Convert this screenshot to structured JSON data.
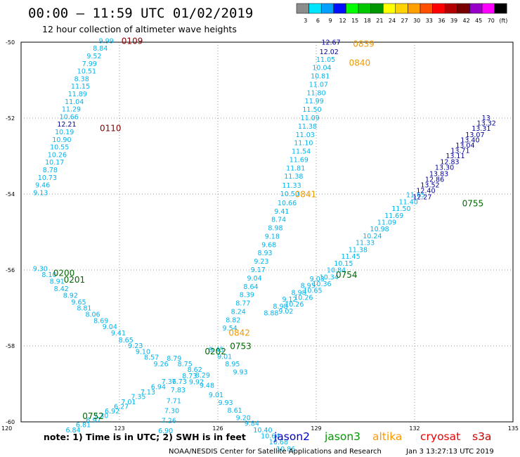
{
  "header": {
    "title": "00:00 – 11:59 UTC 01/02/2019",
    "subtitle": "12 hour collection of altimeter wave heights"
  },
  "colorbar": {
    "labels": [
      "3",
      "6",
      "9",
      "12",
      "15",
      "18",
      "21",
      "24",
      "27",
      "30",
      "33",
      "36",
      "39",
      "42",
      "45",
      "70",
      "(ft)"
    ],
    "colors": [
      "#8c8c8c",
      "#00e5ff",
      "#00a0ff",
      "#0010ff",
      "#00ff00",
      "#00c800",
      "#009600",
      "#ffff00",
      "#ffd200",
      "#ffa000",
      "#ff5000",
      "#ff0000",
      "#b40000",
      "#780000",
      "#9600c8",
      "#ff00ff",
      "#000000"
    ]
  },
  "footer": {
    "note": "note:  1) Time is in UTC;  2) SWH is in feet",
    "credit": "NOAA/NESDIS Center for Satellite Applications and Research",
    "timestamp": "Jan  3 13:27:13 UTC 2019"
  },
  "legend": [
    {
      "name": "jason2",
      "color": "#0000cc"
    },
    {
      "name": "jason3",
      "color": "#009900"
    },
    {
      "name": "altika",
      "color": "#ff9900"
    },
    {
      "name": "cryosat",
      "color": "#ee0000"
    },
    {
      "name": "s3a",
      "color": "#cc0000"
    }
  ],
  "chart_data": {
    "type": "scatter",
    "xlim": [
      120,
      135
    ],
    "ylim": [
      -60,
      -50
    ],
    "x_ticks": [
      "120",
      "123",
      "126",
      "129",
      "132",
      "135"
    ],
    "x_tick_values": [
      120,
      123,
      126,
      129,
      132,
      135
    ],
    "y_ticks": [
      "-50",
      "-52",
      "-54",
      "-56",
      "-58",
      "-60"
    ],
    "y_tick_values": [
      -50,
      -52,
      -54,
      -56,
      -58,
      -60
    ],
    "grid": true,
    "color_scale": {
      "bins": [
        3,
        6,
        9,
        12,
        15,
        18
      ],
      "colors": [
        "#8c8c8c",
        "#00b4ec",
        "#00b4ec",
        "#000099",
        "#66ee66",
        "#66ee66"
      ]
    },
    "time_labels": [
      {
        "text": "0109",
        "lon": 123.06,
        "lat": -49.97,
        "color": "#880000"
      },
      {
        "text": "0110",
        "lon": 122.4,
        "lat": -52.27,
        "color": "#880000"
      },
      {
        "text": "0200",
        "lon": 120.98,
        "lat": -56.08,
        "color": "#006600"
      },
      {
        "text": "0201",
        "lon": 121.3,
        "lat": -56.26,
        "color": "#006600"
      },
      {
        "text": "0202",
        "lon": 125.6,
        "lat": -58.15,
        "color": "#006600"
      },
      {
        "text": "0752",
        "lon": 121.87,
        "lat": -59.85,
        "color": "#006600"
      },
      {
        "text": "0753",
        "lon": 126.37,
        "lat": -58.01,
        "color": "#006600"
      },
      {
        "text": "0754",
        "lon": 129.6,
        "lat": -56.13,
        "color": "#006600"
      },
      {
        "text": "0755",
        "lon": 133.45,
        "lat": -54.25,
        "color": "#006600"
      },
      {
        "text": "0839",
        "lon": 130.12,
        "lat": -50.05,
        "color": "#ee9900"
      },
      {
        "text": "0840",
        "lon": 130.0,
        "lat": -50.55,
        "color": "#ee9900"
      },
      {
        "text": "0841",
        "lon": 128.35,
        "lat": -54.01,
        "color": "#ee9900"
      },
      {
        "text": "0842",
        "lon": 126.33,
        "lat": -57.66,
        "color": "#ee9900"
      }
    ],
    "series": [
      {
        "name": "jason2",
        "points": [
          {
            "v": "9.99",
            "x": 122.37,
            "y": -49.97
          },
          {
            "v": "8.84",
            "x": 122.19,
            "y": -50.17
          },
          {
            "v": "9.52",
            "x": 122.0,
            "y": -50.37
          },
          {
            "v": "7.99",
            "x": 121.86,
            "y": -50.57
          },
          {
            "v": "10.51",
            "x": 121.71,
            "y": -50.77
          },
          {
            "v": "8.38",
            "x": 121.62,
            "y": -50.97
          },
          {
            "v": "11.15",
            "x": 121.52,
            "y": -51.17
          },
          {
            "v": "11.89",
            "x": 121.43,
            "y": -51.37
          },
          {
            "v": "11.04",
            "x": 121.33,
            "y": -51.57
          },
          {
            "v": "11.29",
            "x": 121.24,
            "y": -51.77
          },
          {
            "v": "10.66",
            "x": 121.17,
            "y": -51.97
          },
          {
            "v": "12.21",
            "x": 121.1,
            "y": -52.17
          },
          {
            "v": "10.19",
            "x": 121.03,
            "y": -52.37
          },
          {
            "v": "10.90",
            "x": 120.95,
            "y": -52.57
          },
          {
            "v": "10.55",
            "x": 120.88,
            "y": -52.77
          },
          {
            "v": "10.26",
            "x": 120.81,
            "y": -52.97
          },
          {
            "v": "10.17",
            "x": 120.73,
            "y": -53.17
          },
          {
            "v": "8.78",
            "x": 120.66,
            "y": -53.37
          },
          {
            "v": "10.73",
            "x": 120.51,
            "y": -53.57
          },
          {
            "v": "9.46",
            "x": 120.43,
            "y": -53.77
          },
          {
            "v": "9.13",
            "x": 120.37,
            "y": -53.97
          },
          {
            "v": "9.30",
            "x": 120.36,
            "y": -55.97
          },
          {
            "v": "8.10",
            "x": 120.63,
            "y": -56.13
          },
          {
            "v": "8.91",
            "x": 120.87,
            "y": -56.31
          },
          {
            "v": "8.42",
            "x": 121.0,
            "y": -56.5
          },
          {
            "v": "8.92",
            "x": 121.28,
            "y": -56.68
          },
          {
            "v": "9.65",
            "x": 121.53,
            "y": -56.85
          },
          {
            "v": "8.81",
            "x": 121.7,
            "y": -57.01
          },
          {
            "v": "8.06",
            "x": 121.96,
            "y": -57.18
          },
          {
            "v": "8.69",
            "x": 122.21,
            "y": -57.34
          },
          {
            "v": "9.04",
            "x": 122.48,
            "y": -57.5
          },
          {
            "v": "9.41",
            "x": 122.74,
            "y": -57.67
          },
          {
            "v": "8.65",
            "x": 122.97,
            "y": -57.85
          },
          {
            "v": "9.23",
            "x": 123.26,
            "y": -58.0
          },
          {
            "v": "9.10",
            "x": 123.49,
            "y": -58.16
          },
          {
            "v": "8.57",
            "x": 123.75,
            "y": -58.31
          },
          {
            "v": "9.26",
            "x": 124.04,
            "y": -58.48
          },
          {
            "v": "12.67",
            "x": 129.16,
            "y": -50.01
          },
          {
            "v": "12.02",
            "x": 129.1,
            "y": -50.26
          },
          {
            "v": "11.05",
            "x": 129.0,
            "y": -50.46
          },
          {
            "v": "10.04",
            "x": 128.88,
            "y": -50.68
          },
          {
            "v": "10.81",
            "x": 128.83,
            "y": -50.9
          },
          {
            "v": "11.07",
            "x": 128.78,
            "y": -51.12
          },
          {
            "v": "11.80",
            "x": 128.71,
            "y": -51.34
          },
          {
            "v": "11.99",
            "x": 128.65,
            "y": -51.56
          },
          {
            "v": "11.50",
            "x": 128.58,
            "y": -51.78
          },
          {
            "v": "11.09",
            "x": 128.52,
            "y": -52.0
          },
          {
            "v": "11.38",
            "x": 128.44,
            "y": -52.22
          },
          {
            "v": "11.03",
            "x": 128.37,
            "y": -52.44
          },
          {
            "v": "11.10",
            "x": 128.32,
            "y": -52.66
          },
          {
            "v": "11.54",
            "x": 128.25,
            "y": -52.88
          },
          {
            "v": "11.69",
            "x": 128.18,
            "y": -53.1
          },
          {
            "v": "11.81",
            "x": 128.08,
            "y": -53.32
          },
          {
            "v": "11.38",
            "x": 128.02,
            "y": -53.54
          },
          {
            "v": "11.33",
            "x": 127.96,
            "y": -53.78
          },
          {
            "v": "10.50",
            "x": 127.9,
            "y": -54.0
          },
          {
            "v": "10.66",
            "x": 127.82,
            "y": -54.24
          },
          {
            "v": "9.41",
            "x": 127.72,
            "y": -54.46
          },
          {
            "v": "8.74",
            "x": 127.63,
            "y": -54.68
          },
          {
            "v": "8.98",
            "x": 127.53,
            "y": -54.9
          },
          {
            "v": "9.18",
            "x": 127.43,
            "y": -55.12
          },
          {
            "v": "9.68",
            "x": 127.33,
            "y": -55.34
          },
          {
            "v": "8.93",
            "x": 127.21,
            "y": -55.56
          },
          {
            "v": "9.23",
            "x": 127.1,
            "y": -55.78
          },
          {
            "v": "9.17",
            "x": 127.0,
            "y": -56.0
          },
          {
            "v": "9.04",
            "x": 126.89,
            "y": -56.22
          },
          {
            "v": "8.64",
            "x": 126.78,
            "y": -56.44
          },
          {
            "v": "8.39",
            "x": 126.66,
            "y": -56.66
          },
          {
            "v": "8.77",
            "x": 126.54,
            "y": -56.88
          },
          {
            "v": "8.24",
            "x": 126.4,
            "y": -57.1
          },
          {
            "v": "8.82",
            "x": 126.24,
            "y": -57.32
          },
          {
            "v": "9.54",
            "x": 126.14,
            "y": -57.54
          },
          {
            "v": "9.03",
            "x": 128.8,
            "y": -56.24
          },
          {
            "v": "8.95",
            "x": 128.52,
            "y": -56.42
          },
          {
            "v": "8.98",
            "x": 128.24,
            "y": -56.6
          },
          {
            "v": "9.12",
            "x": 127.96,
            "y": -56.78
          },
          {
            "v": "8.98",
            "x": 127.68,
            "y": -56.96
          },
          {
            "v": "8.88",
            "x": 127.4,
            "y": -57.14
          },
          {
            "v": "9.45",
            "x": 125.73,
            "y": -58.1
          },
          {
            "v": "9.01",
            "x": 125.98,
            "y": -58.29
          },
          {
            "v": "8.95",
            "x": 126.22,
            "y": -58.48
          },
          {
            "v": "9.93",
            "x": 126.46,
            "y": -58.69
          },
          {
            "v": "9.92",
            "x": 125.12,
            "y": -58.95
          },
          {
            "v": "9.48",
            "x": 125.44,
            "y": -59.05
          },
          {
            "v": "9.01",
            "x": 125.72,
            "y": -59.3
          },
          {
            "v": "9.93",
            "x": 126.01,
            "y": -59.5
          },
          {
            "v": "8.61",
            "x": 126.29,
            "y": -59.7
          },
          {
            "v": "9.20",
            "x": 126.55,
            "y": -59.9
          },
          {
            "v": "9.84",
            "x": 126.81,
            "y": -60.05
          },
          {
            "v": "10.40",
            "x": 127.08,
            "y": -60.22
          },
          {
            "v": "10.64",
            "x": 127.31,
            "y": -60.38
          },
          {
            "v": "10.68",
            "x": 127.56,
            "y": -60.54
          },
          {
            "v": "10.86",
            "x": 127.78,
            "y": -60.72
          },
          {
            "v": "9.02",
            "x": 127.85,
            "y": -57.09
          },
          {
            "v": "10.26",
            "x": 128.04,
            "y": -56.91
          },
          {
            "v": "10.26",
            "x": 128.32,
            "y": -56.73
          },
          {
            "v": "10.65",
            "x": 128.6,
            "y": -56.55
          },
          {
            "v": "10.36",
            "x": 128.88,
            "y": -56.37
          },
          {
            "v": "10.34",
            "x": 129.1,
            "y": -56.19
          },
          {
            "v": "10.84",
            "x": 129.32,
            "y": -56.01
          },
          {
            "v": "10.15",
            "x": 129.54,
            "y": -55.83
          },
          {
            "v": "11.45",
            "x": 129.76,
            "y": -55.65
          },
          {
            "v": "11.38",
            "x": 129.98,
            "y": -55.47
          },
          {
            "v": "11.33",
            "x": 130.2,
            "y": -55.29
          },
          {
            "v": "10.24",
            "x": 130.42,
            "y": -55.11
          },
          {
            "v": "10.98",
            "x": 130.64,
            "y": -54.93
          },
          {
            "v": "11.09",
            "x": 130.86,
            "y": -54.75
          },
          {
            "v": "11.69",
            "x": 131.08,
            "y": -54.57
          },
          {
            "v": "11.50",
            "x": 131.3,
            "y": -54.39
          },
          {
            "v": "11.40",
            "x": 131.52,
            "y": -54.21
          },
          {
            "v": "11.65",
            "x": 131.74,
            "y": -54.03
          }
        ]
      },
      {
        "name": "jason3",
        "points": [
          {
            "v": "12.27",
            "x": 131.94,
            "y": -54.08
          },
          {
            "v": "12.40",
            "x": 132.05,
            "y": -53.92
          },
          {
            "v": "13.52",
            "x": 132.18,
            "y": -53.77
          },
          {
            "v": "12.86",
            "x": 132.32,
            "y": -53.62
          },
          {
            "v": "13.83",
            "x": 132.45,
            "y": -53.47
          },
          {
            "v": "13.30",
            "x": 132.62,
            "y": -53.31
          },
          {
            "v": "12.83",
            "x": 132.78,
            "y": -53.16
          },
          {
            "v": "13.11",
            "x": 132.95,
            "y": -53.0
          },
          {
            "v": "13.71",
            "x": 133.1,
            "y": -52.86
          },
          {
            "v": "13.04",
            "x": 133.25,
            "y": -52.72
          },
          {
            "v": "13.40",
            "x": 133.4,
            "y": -52.58
          },
          {
            "v": "13.07",
            "x": 133.55,
            "y": -52.44
          },
          {
            "v": "13.31",
            "x": 133.74,
            "y": -52.28
          },
          {
            "v": "13.32",
            "x": 133.9,
            "y": -52.14
          },
          {
            "v": "13",
            "x": 134.05,
            "y": -52.0
          }
        ]
      },
      {
        "name": "jason3-south",
        "points": [
          {
            "v": "8.79",
            "x": 124.44,
            "y": -58.33
          },
          {
            "v": "8.75",
            "x": 124.77,
            "y": -58.48
          },
          {
            "v": "8.62",
            "x": 125.07,
            "y": -58.63
          },
          {
            "v": "8.29",
            "x": 125.31,
            "y": -58.78
          },
          {
            "v": "8.73",
            "x": 124.91,
            "y": -58.8
          },
          {
            "v": "7.73",
            "x": 124.6,
            "y": -58.94
          },
          {
            "v": "7.36",
            "x": 124.28,
            "y": -58.94
          },
          {
            "v": "7.83",
            "x": 124.56,
            "y": -59.17
          },
          {
            "v": "6.94",
            "x": 123.96,
            "y": -59.08
          },
          {
            "v": "7.13",
            "x": 123.64,
            "y": -59.22
          },
          {
            "v": "7.35",
            "x": 123.35,
            "y": -59.34
          },
          {
            "v": "7.01",
            "x": 123.05,
            "y": -59.48
          },
          {
            "v": "7.71",
            "x": 124.43,
            "y": -59.45
          },
          {
            "v": "6.27",
            "x": 122.83,
            "y": -59.6
          },
          {
            "v": "6.92",
            "x": 122.55,
            "y": -59.72
          },
          {
            "v": "7.30",
            "x": 124.37,
            "y": -59.71
          },
          {
            "v": "7.30",
            "x": 122.21,
            "y": -59.84
          },
          {
            "v": "7.26",
            "x": 124.28,
            "y": -59.97
          },
          {
            "v": "6.97",
            "x": 121.98,
            "y": -59.96
          },
          {
            "v": "6.81",
            "x": 121.67,
            "y": -60.08
          },
          {
            "v": "6.90",
            "x": 124.18,
            "y": -60.24
          },
          {
            "v": "6.84",
            "x": 121.36,
            "y": -60.22
          }
        ]
      }
    ]
  }
}
